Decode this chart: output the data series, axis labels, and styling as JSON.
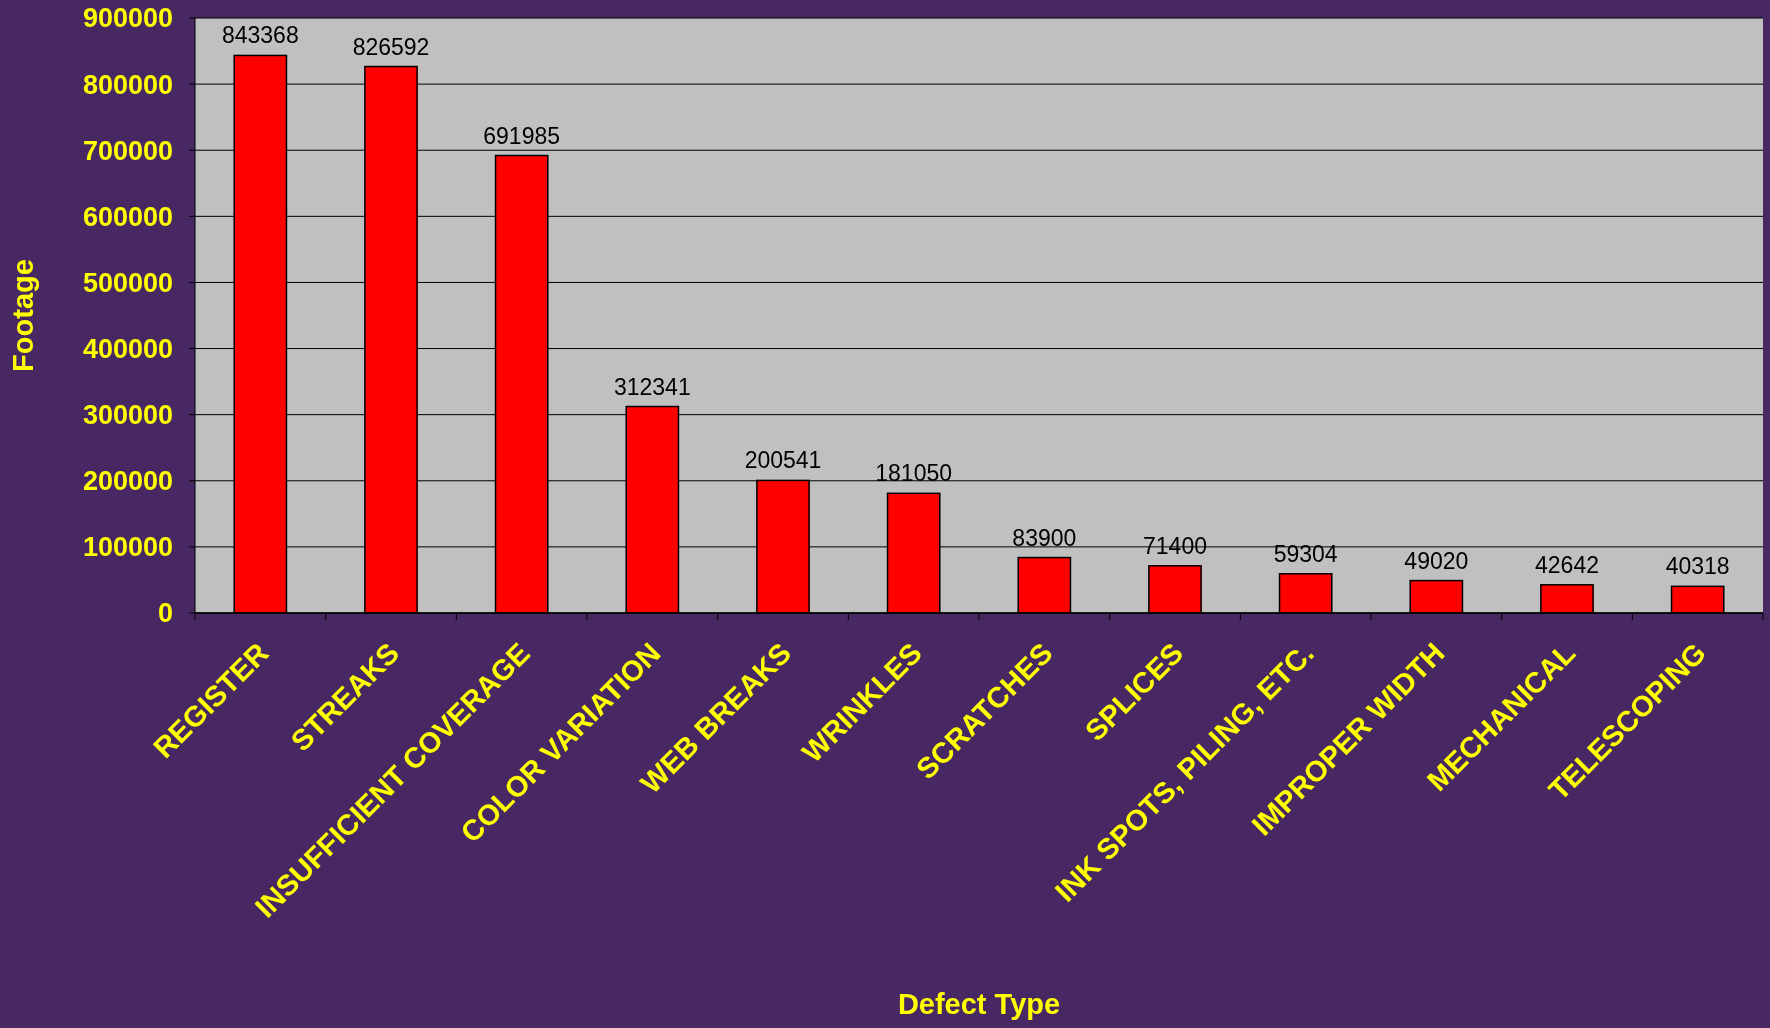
{
  "chart_data": {
    "type": "bar",
    "xlabel": "Defect Type",
    "ylabel": "Footage",
    "categories": [
      "REGISTER",
      "STREAKS",
      "INSUFFICIENT COVERAGE",
      "COLOR VARIATION",
      "WEB BREAKS",
      "WRINKLES",
      "SCRATCHES",
      "SPLICES",
      "INK SPOTS, PILING, ETC.",
      "IMPROPER WIDTH",
      "MECHANICAL",
      "TELESCOPING"
    ],
    "values": [
      843368,
      826592,
      691985,
      312341,
      200541,
      181050,
      83900,
      71400,
      59304,
      49020,
      42642,
      40318
    ],
    "color": "#ff0000",
    "ylim": [
      0,
      900000
    ],
    "yticks": [
      0,
      100000,
      200000,
      300000,
      400000,
      500000,
      600000,
      700000,
      800000,
      900000
    ],
    "grid": "y",
    "data_labels": true
  }
}
